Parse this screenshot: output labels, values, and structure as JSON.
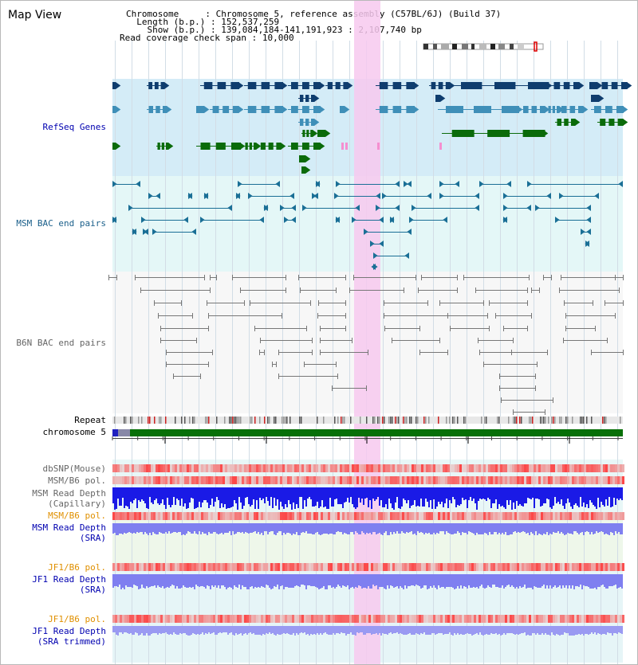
{
  "view": {
    "title": "Map View"
  },
  "info": {
    "chromosome_key": "Chromosome",
    "chromosome_val": "Chromosome 5, reference assembly (C57BL/6J) (Build 37)",
    "length_key": "Length (b.p.)",
    "length_val": "152,537,259",
    "show_key": "Show (b.p.)",
    "show_val": "139,084,184-141,191,923 : 2,107,740 bp",
    "span_key": "Read coverage check span",
    "span_val": "10,000"
  },
  "tracks": {
    "refseq": "RefSeq Genes",
    "msm_bac": "MSM BAC end pairs",
    "b6n_bac": "B6N BAC end pairs",
    "repeat": "Repeat",
    "chromosome": "chromosome 5",
    "dbsnp": "dbSNP(Mouse)",
    "msm_pol": "MSM/B6 pol.",
    "msm_depth_cap_1": "MSM Read Depth",
    "msm_depth_cap_2": "(Capillary)",
    "msm_pol_sra": "MSM/B6 pol.",
    "msm_depth_sra_1": "MSM Read Depth",
    "msm_depth_sra_2": "(SRA)",
    "jf1_pol": "JF1/B6 pol.",
    "jf1_depth_1": "JF1 Read Depth",
    "jf1_depth_2": "(SRA)",
    "jf1_pol_trim": "JF1/B6 pol.",
    "jf1_trim_1": "JF1 Read Depth",
    "jf1_trim_2": "(SRA trimmed)"
  },
  "axis": {
    "ticks": [
      "139200000",
      "139600000",
      "140000000",
      "140400000",
      "140800000"
    ]
  },
  "colors": {
    "refseq_dark": "#0f3d6e",
    "refseq_mid": "#3f8fb8",
    "refseq_green": "#0a6b0a",
    "msm_bac": "#1a6f96",
    "b6n_bac": "#777777",
    "highlight": "#f7c9ef",
    "chromosome_bar": "#087008",
    "depth_capillary": "#1a1ae6",
    "depth_sra": "#7f7ff0",
    "pol_red": "#e83030"
  }
}
